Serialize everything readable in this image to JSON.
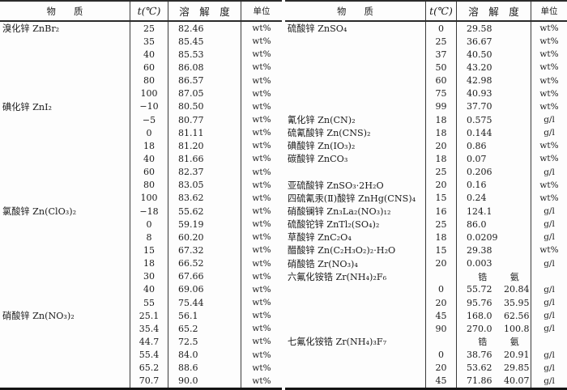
{
  "page": {
    "background": "#fdfdfd",
    "ink": "#1b1b1b",
    "rule_color": "#2b2b2b"
  },
  "header": {
    "substance": "物　　质",
    "temperature": "t(℃)",
    "solubility": "溶　解　度",
    "unit": "单位"
  },
  "tables": [
    {
      "side": "left",
      "rows": [
        {
          "sub": "溴化锌 ZnBr₂",
          "t": "25",
          "s": "82.46",
          "u": "wt%"
        },
        {
          "t": "35",
          "s": "85.45",
          "u": "wt%"
        },
        {
          "t": "40",
          "s": "85.53",
          "u": "wt%"
        },
        {
          "t": "60",
          "s": "86.08",
          "u": "wt%"
        },
        {
          "t": "80",
          "s": "86.57",
          "u": "wt%"
        },
        {
          "t": "100",
          "s": "87.05",
          "u": "wt%"
        },
        {
          "sub": "碘化锌 ZnI₂",
          "t": "−10",
          "s": "80.50",
          "u": "wt%"
        },
        {
          "t": "−5",
          "s": "80.77",
          "u": "wt%"
        },
        {
          "t": "0",
          "s": "81.11",
          "u": "wt%"
        },
        {
          "t": "18",
          "s": "81.20",
          "u": "wt%"
        },
        {
          "t": "40",
          "s": "81.66",
          "u": "wt%"
        },
        {
          "t": "60",
          "s": "82.37",
          "u": "wt%"
        },
        {
          "t": "80",
          "s": "83.05",
          "u": "wt%"
        },
        {
          "t": "100",
          "s": "83.62",
          "u": "wt%"
        },
        {
          "sub": "氯酸锌 Zn(ClO₃)₂",
          "t": "−18",
          "s": "55.62",
          "u": "wt%"
        },
        {
          "t": "0",
          "s": "59.19",
          "u": "wt%"
        },
        {
          "t": "8",
          "s": "60.20",
          "u": "wt%"
        },
        {
          "t": "15",
          "s": "67.32",
          "u": "wt%"
        },
        {
          "t": "18",
          "s": "66.52",
          "u": "wt%"
        },
        {
          "t": "30",
          "s": "67.66",
          "u": "wt%"
        },
        {
          "t": "40",
          "s": "69.06",
          "u": "wt%"
        },
        {
          "t": "55",
          "s": "75.44",
          "u": "wt%"
        },
        {
          "sub": "硝酸锌 Zn(NO₃)₂",
          "t": "25.1",
          "s": "56.1",
          "u": "wt%"
        },
        {
          "t": "35.4",
          "s": "65.2",
          "u": "wt%"
        },
        {
          "t": "44.7",
          "s": "72.5",
          "u": "wt%"
        },
        {
          "t": "55.4",
          "s": "84.0",
          "u": "wt%"
        },
        {
          "t": "65.2",
          "s": "88.6",
          "u": "wt%"
        },
        {
          "t": "70.7",
          "s": "90.0",
          "u": "wt%"
        }
      ]
    },
    {
      "side": "right",
      "rows": [
        {
          "sub": "硫酸锌 ZnSO₄",
          "t": "0",
          "s": "29.58",
          "u": "wt%"
        },
        {
          "t": "25",
          "s": "36.67",
          "u": "wt%"
        },
        {
          "t": "37",
          "s": "40.50",
          "u": "wt%"
        },
        {
          "t": "50",
          "s": "43.20",
          "u": "wt%"
        },
        {
          "t": "60",
          "s": "42.98",
          "u": "wt%"
        },
        {
          "t": "75",
          "s": "40.93",
          "u": "wt%"
        },
        {
          "t": "99",
          "s": "37.70",
          "u": "wt%"
        },
        {
          "sub": "氰化锌 Zn(CN)₂",
          "t": "18",
          "s": "0.575",
          "u": "g/l"
        },
        {
          "sub": "硫氰酸锌 Zn(CNS)₂",
          "t": "18",
          "s": "0.144",
          "u": "g/l"
        },
        {
          "sub": "碘酸锌 Zn(IO₃)₂",
          "t": "20",
          "s": "0.86",
          "u": "wt%"
        },
        {
          "sub": "碳酸锌 ZnCO₃",
          "t": "18",
          "s": "0.07",
          "u": "wt%"
        },
        {
          "t": "25",
          "s": "0.206",
          "u": "g/l"
        },
        {
          "sub": "亚硫酸锌 ZnSO₃·2H₂O",
          "t": "20",
          "s": "0.16",
          "u": "wt%"
        },
        {
          "sub": "四硫氰汞(Ⅱ)酸锌 ZnHg(CNS)₄",
          "t": "15",
          "s": "0.24",
          "u": "wt%"
        },
        {
          "sub": "硝酸镧锌 Zn₃La₂(NO₃)₁₂",
          "t": "16",
          "s": "124.1",
          "u": "g/l"
        },
        {
          "sub": "硫酸铊锌 ZnTl₂(SO₄)₂",
          "t": "25",
          "s": "86.0",
          "u": "g/l"
        },
        {
          "sub": "草酸锌 ZnC₂O₄",
          "t": "18",
          "s": "0.0209",
          "u": "g/l"
        },
        {
          "sub": "醋酸锌 Zn(C₂H₃O₂)₂·H₂O",
          "t": "15",
          "s": "29.38",
          "u": "wt%"
        },
        {
          "sub": "硝酸锆 Zr(NO₃)₄",
          "t": "20",
          "s": "0.003",
          "u": "g/l"
        },
        {
          "sub": "六氟化铵锆 Zr(NH₄)₂F₆",
          "sh1": "锆",
          "sh2": "氨"
        },
        {
          "t": "0",
          "s": "55.72",
          "s2": "20.84",
          "u": "g/l"
        },
        {
          "t": "20",
          "s": "95.76",
          "s2": "35.95",
          "u": "g/l"
        },
        {
          "t": "45",
          "s": "168.0",
          "s2": "62.56",
          "u": "g/l"
        },
        {
          "t": "90",
          "s": "270.0",
          "s2": "100.8",
          "u": "g/l"
        },
        {
          "sub": "七氟化铵锆 Zr(NH₄)₃F₇",
          "sh1": "锆",
          "sh2": "氨"
        },
        {
          "t": "0",
          "s": "38.76",
          "s2": "20.91",
          "u": "g/l"
        },
        {
          "t": "20",
          "s": "53.62",
          "s2": "29.85",
          "u": "g/l"
        },
        {
          "t": "45",
          "s": "71.86",
          "s2": "40.07",
          "u": "g/l"
        }
      ]
    }
  ]
}
